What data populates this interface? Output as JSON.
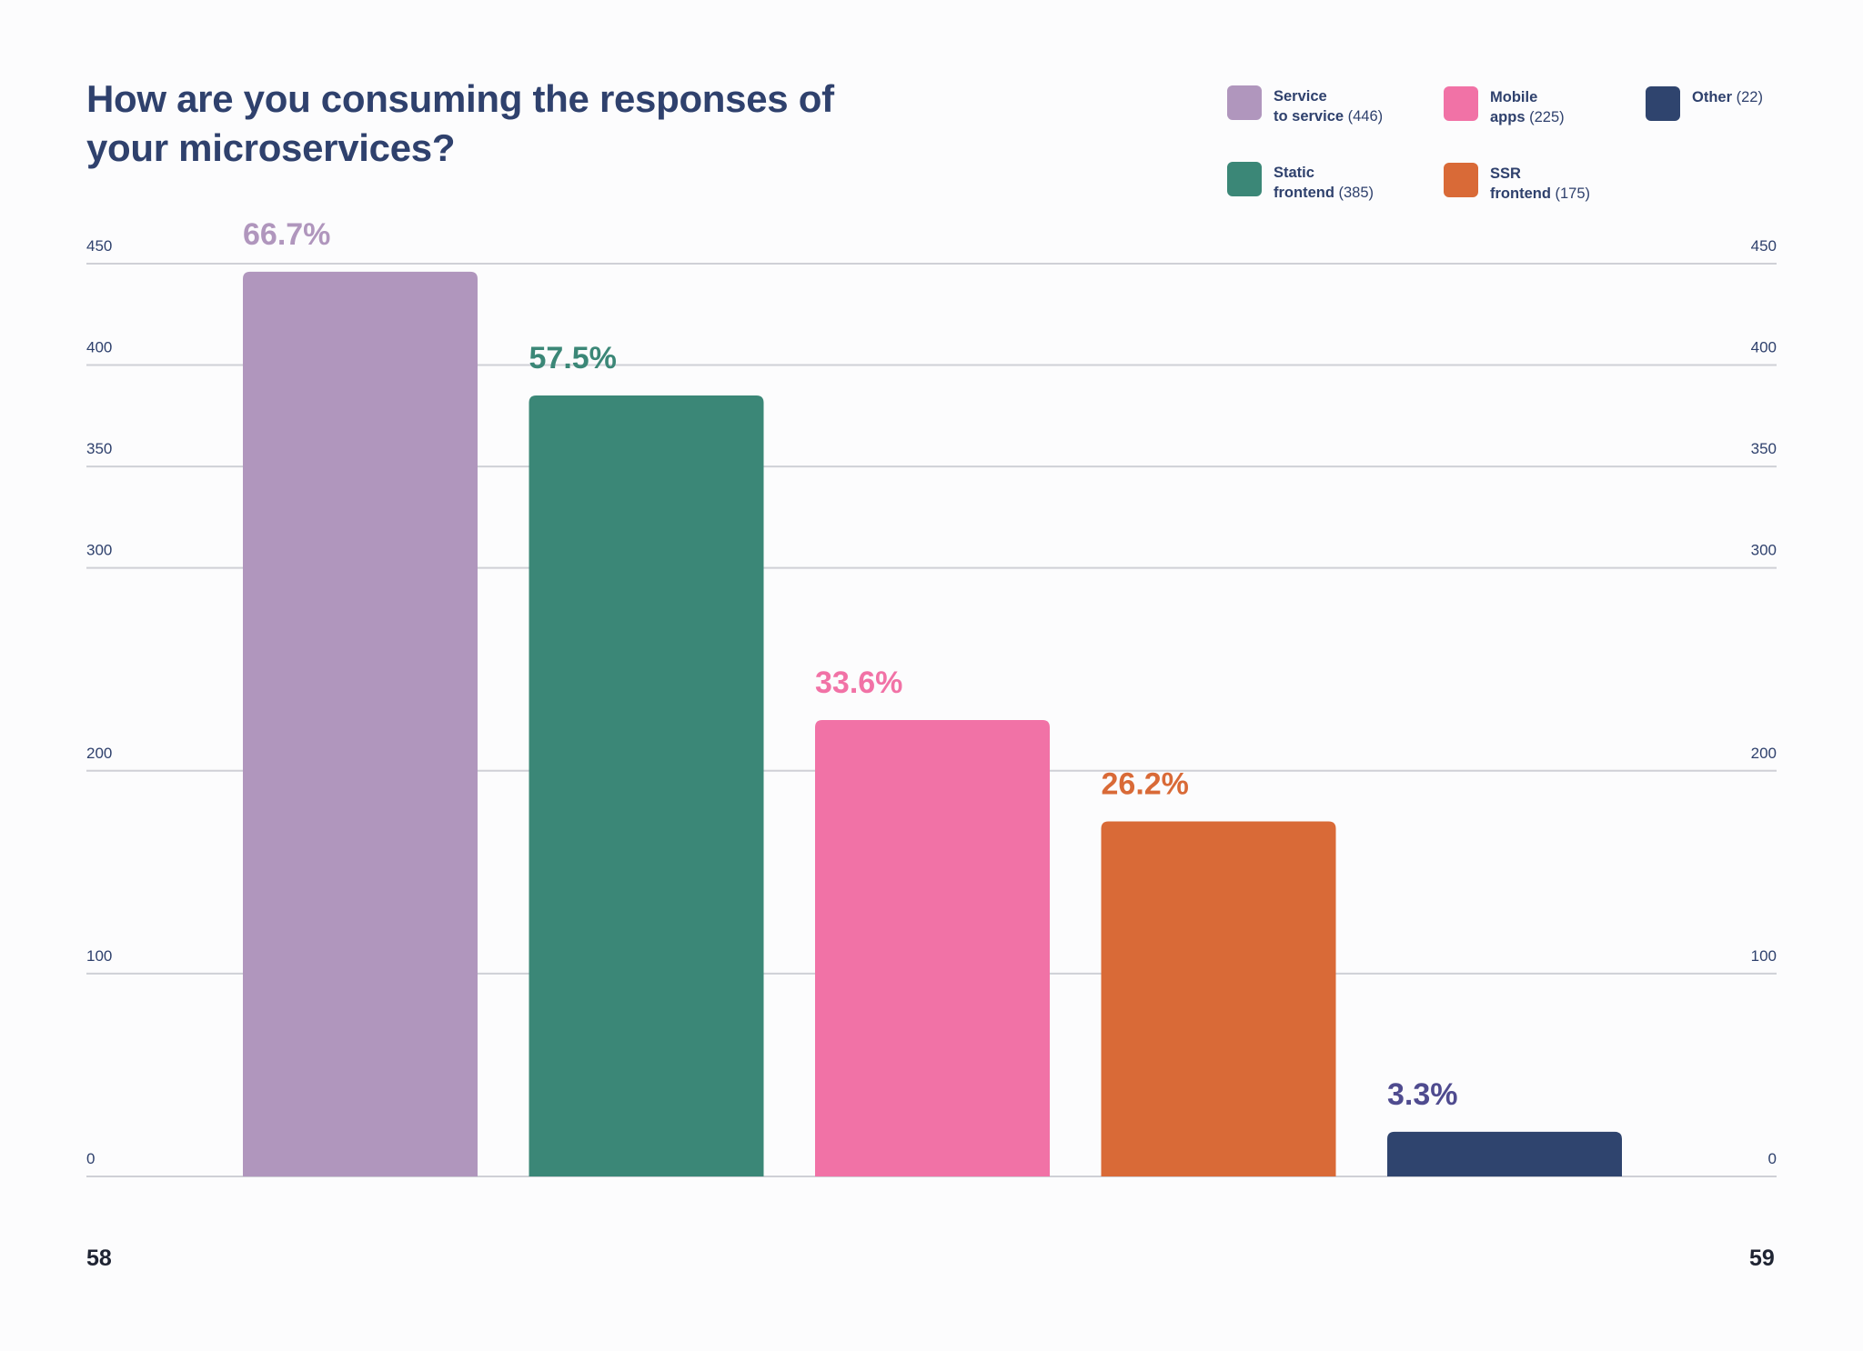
{
  "page": {
    "title": "How are you consuming the responses of your microservices?",
    "page_left": "58",
    "page_right": "59"
  },
  "legend": [
    {
      "name": "Service\n to service",
      "count": " (446)",
      "color": "#b096bd"
    },
    {
      "name": "Mobile\napps",
      "count": " (225)",
      "color": "#f172a6"
    },
    {
      "name": "Other",
      "count": " (22)",
      "color": "#2f446e"
    },
    {
      "name": "Static\nfrontend",
      "count": " (385)",
      "color": "#3b8777"
    },
    {
      "name": "SSR\nfrontend",
      "count": " (175)",
      "color": "#d96a37"
    }
  ],
  "chart_data": {
    "type": "bar",
    "categories": [
      "Service to service",
      "Static frontend",
      "Mobile apps",
      "SSR frontend",
      "Other"
    ],
    "values": [
      446,
      385,
      225,
      175,
      22
    ],
    "data_labels": [
      "66.7%",
      "57.5%",
      "33.6%",
      "26.2%",
      "3.3%"
    ],
    "colors": [
      "#b096bd",
      "#3b8777",
      "#f172a6",
      "#d96a37",
      "#2f446e"
    ],
    "label_colors": [
      "#b096bd",
      "#3b8777",
      "#f172a6",
      "#d96a37",
      "#4f4b8f"
    ],
    "y_ticks": [
      0,
      100,
      200,
      300,
      350,
      400,
      450
    ],
    "ylim": [
      0,
      450
    ],
    "grid": true,
    "y_axis_both_sides": true,
    "legend_position": "top-right"
  }
}
